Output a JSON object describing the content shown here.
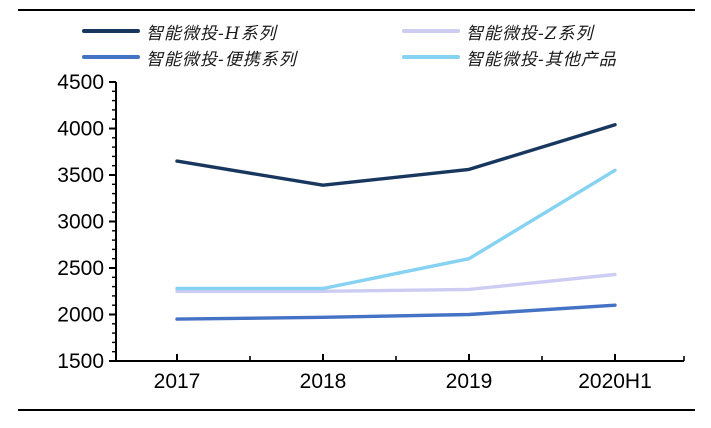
{
  "legend": {
    "items": [
      {
        "label": "智能微投-H系列",
        "color": "#17375E"
      },
      {
        "label": "智能微投-Z系列",
        "color": "#CDCDF4"
      },
      {
        "label": "智能微投-便携系列",
        "color": "#4472C4"
      },
      {
        "label": "智能微投-其他产品",
        "color": "#85D2F2"
      }
    ]
  },
  "chart_data": {
    "type": "line",
    "title": "",
    "xlabel": "",
    "ylabel": "",
    "categories": [
      "2017",
      "2018",
      "2019",
      "2020H1"
    ],
    "series": [
      {
        "name": "智能微投-H系列",
        "color": "#17375E",
        "values": [
          3650,
          3390,
          3560,
          4040
        ]
      },
      {
        "name": "智能微投-Z系列",
        "color": "#CDCDF4",
        "values": [
          2250,
          2250,
          2270,
          2430
        ]
      },
      {
        "name": "智能微投-便携系列",
        "color": "#4472C4",
        "values": [
          1950,
          1970,
          2000,
          2100
        ]
      },
      {
        "name": "智能微投-其他产品",
        "color": "#85D2F2",
        "values": [
          2280,
          2280,
          2600,
          3550
        ]
      }
    ],
    "ylim": [
      1500,
      4500
    ],
    "y_tick_step": 500,
    "y_minor_tick_step": 100,
    "y_tick_labels": [
      "4500",
      "4000",
      "3500",
      "3000",
      "2500",
      "2000",
      "1500"
    ],
    "grid": false,
    "legend_position": "top",
    "axis_color": "#000000",
    "tick_label_color": "#000000"
  }
}
